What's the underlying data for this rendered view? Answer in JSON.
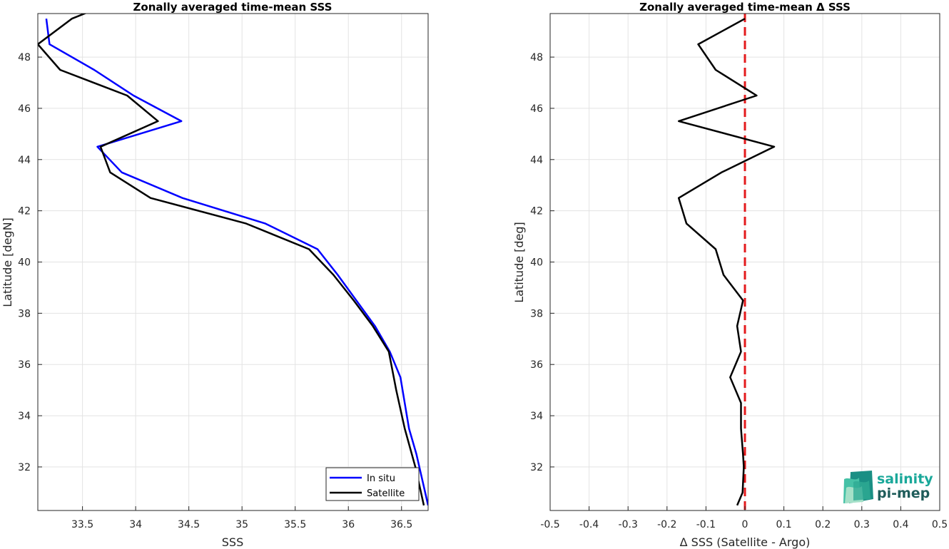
{
  "chart_data": [
    {
      "type": "line",
      "title": "Zonally averaged time-mean SSS",
      "xlabel": "SSS",
      "ylabel": "Latitude [degN]",
      "xlim": [
        33.08,
        36.75
      ],
      "ylim": [
        30.3,
        49.7
      ],
      "xticks": [
        33.5,
        34,
        34.5,
        35,
        35.5,
        36,
        36.5
      ],
      "xtick_labels": [
        "33.5",
        "34",
        "34.5",
        "35",
        "35.5",
        "36",
        "36.5"
      ],
      "yticks": [
        32,
        34,
        36,
        38,
        40,
        42,
        44,
        46,
        48
      ],
      "ytick_labels": [
        "32",
        "34",
        "36",
        "38",
        "40",
        "42",
        "44",
        "46",
        "48"
      ],
      "grid": true,
      "legend_position": "bottom-right",
      "series": [
        {
          "name": "In situ",
          "color": "#0000ff",
          "x": [
            33.16,
            33.19,
            33.61,
            33.98,
            34.43,
            33.64,
            33.87,
            34.44,
            35.22,
            35.71,
            35.9,
            36.25,
            36.39,
            36.49,
            36.57,
            36.64,
            36.75
          ],
          "y": [
            49.5,
            48.5,
            47.5,
            46.5,
            45.5,
            44.5,
            43.5,
            42.5,
            41.5,
            40.5,
            39.5,
            37.5,
            36.5,
            35.5,
            33.5,
            32.5,
            30.5
          ]
        },
        {
          "name": "Satellite",
          "color": "#000000",
          "x": [
            33.58,
            33.4,
            33.08,
            33.29,
            33.92,
            34.21,
            33.67,
            33.76,
            34.14,
            35.04,
            35.63,
            35.86,
            36.05,
            36.23,
            36.38,
            36.45,
            36.53,
            36.63,
            36.71
          ],
          "y": [
            49.8,
            49.5,
            48.5,
            47.5,
            46.5,
            45.5,
            44.5,
            43.5,
            42.5,
            41.5,
            40.5,
            39.5,
            38.5,
            37.5,
            36.5,
            35.0,
            33.5,
            32.0,
            30.5
          ]
        }
      ]
    },
    {
      "type": "line",
      "title": "Zonally averaged time-mean Δ SSS",
      "xlabel": "Δ SSS (Satellite - Argo)",
      "ylabel": "Latitude [deg]",
      "xlim": [
        -0.5,
        0.5
      ],
      "ylim": [
        30.3,
        49.7
      ],
      "xticks": [
        -0.5,
        -0.4,
        -0.3,
        -0.2,
        -0.1,
        0,
        0.1,
        0.2,
        0.3,
        0.4,
        0.5
      ],
      "xtick_labels": [
        "-0.5",
        "-0.4",
        "-0.3",
        "-0.2",
        "-0.1",
        "0",
        "0.1",
        "0.2",
        "0.3",
        "0.4",
        "0.5"
      ],
      "yticks": [
        32,
        34,
        36,
        38,
        40,
        42,
        44,
        46,
        48
      ],
      "ytick_labels": [
        "32",
        "34",
        "36",
        "38",
        "40",
        "42",
        "44",
        "46",
        "48"
      ],
      "grid": true,
      "reference_line": {
        "x": 0,
        "color": "#e31a1c",
        "style": "dashed"
      },
      "series": [
        {
          "color": "#000000",
          "x": [
            0.0,
            -0.12,
            -0.075,
            0.03,
            -0.17,
            0.075,
            -0.06,
            -0.17,
            -0.15,
            -0.075,
            -0.055,
            -0.005,
            -0.02,
            -0.01,
            -0.038,
            -0.01,
            -0.01,
            -0.005,
            -0.003,
            -0.006,
            -0.02
          ],
          "y": [
            49.5,
            48.5,
            47.5,
            46.5,
            45.5,
            44.5,
            43.5,
            42.5,
            41.5,
            40.5,
            39.5,
            38.5,
            37.5,
            36.5,
            35.5,
            34.5,
            33.5,
            32.5,
            32.0,
            31.0,
            30.5
          ]
        }
      ]
    }
  ],
  "logo": {
    "line1": "salinity",
    "line2": "pi-mep",
    "color1": "#1aa89a",
    "color2": "#1f5c5a"
  }
}
